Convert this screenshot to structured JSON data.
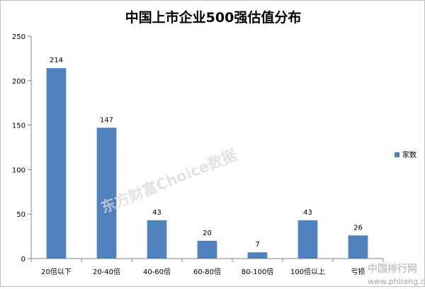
{
  "chart_data": {
    "type": "bar",
    "title": "中国上市企业500强估值分布",
    "categories": [
      "20倍以下",
      "20-40倍",
      "40-60倍",
      "60-80倍",
      "80-100倍",
      "100倍以上",
      "亏损"
    ],
    "series": [
      {
        "name": "家数",
        "values": [
          214,
          147,
          43,
          20,
          7,
          43,
          26
        ]
      }
    ],
    "ylim": [
      0,
      250
    ],
    "yticks": [
      0,
      50,
      100,
      150,
      200,
      250
    ],
    "grid": false,
    "legend": "right",
    "colors": {
      "bar": "#4f81bd",
      "axis": "#868686"
    }
  },
  "watermarks": {
    "source": "东方财富Choice数据",
    "site_name": "中国排行网",
    "site_url": "www.phbang.cn"
  }
}
